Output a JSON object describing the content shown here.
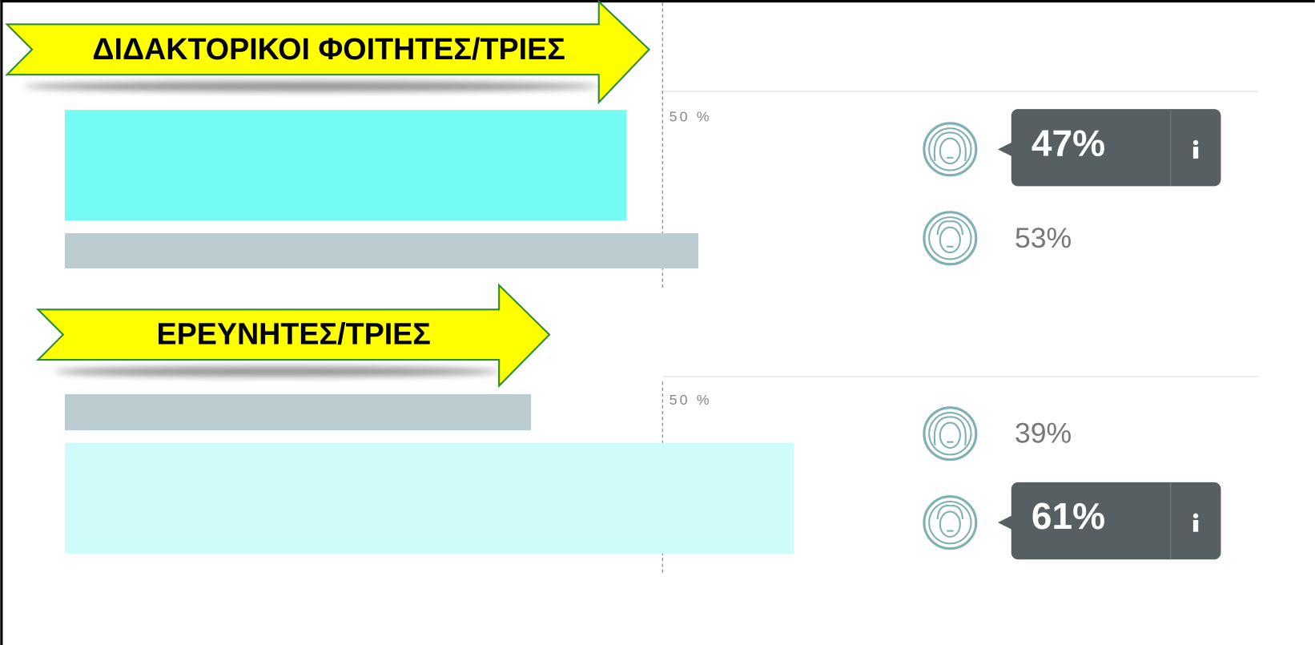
{
  "chart_data": [
    {
      "type": "bar",
      "title": "ΔΙΔΑΚΤΟΡΙΚΟΙ ΦΟΙΤΗΤΕΣ/ΤΡΙΕΣ",
      "values": [
        47,
        53
      ],
      "value_labels": [
        "47%",
        "53%"
      ],
      "colors": [
        "#74fbf4",
        "#bccdd2"
      ],
      "highlight": 0,
      "xlim": [
        0,
        100
      ],
      "xticks": [
        {
          "value": 50,
          "label": "50 %"
        }
      ]
    },
    {
      "type": "bar",
      "title": "ΕΡΕΥΝΗΤΕΣ/ΤΡΙΕΣ",
      "values": [
        39,
        61
      ],
      "value_labels": [
        "39%",
        "61%"
      ],
      "colors": [
        "#bccdd2",
        "#cdfcfa"
      ],
      "highlight": 1,
      "xlim": [
        0,
        100
      ],
      "xticks": [
        {
          "value": 50,
          "label": "50 %"
        }
      ]
    }
  ]
}
